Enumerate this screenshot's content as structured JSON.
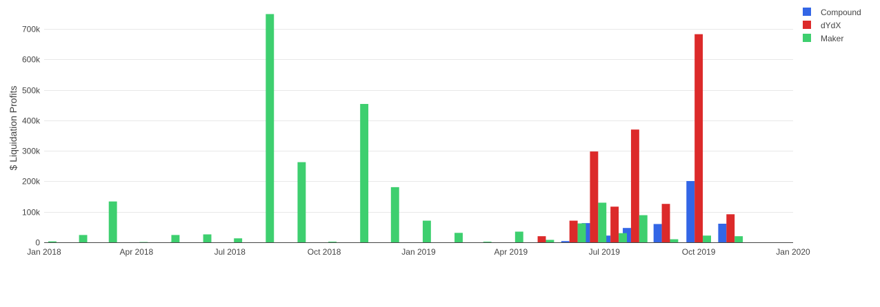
{
  "chart_data": {
    "type": "bar",
    "title": "",
    "xlabel": "",
    "ylabel": "$ Liquidation Profits",
    "x_axis": {
      "type": "date",
      "range": [
        "2018-01-01",
        "2020-01-01"
      ],
      "ticks": [
        {
          "date": "2018-01-01",
          "label": "Jan 2018"
        },
        {
          "date": "2018-04-01",
          "label": "Apr 2018"
        },
        {
          "date": "2018-07-01",
          "label": "Jul 2018"
        },
        {
          "date": "2018-10-01",
          "label": "Oct 2018"
        },
        {
          "date": "2019-01-01",
          "label": "Jan 2019"
        },
        {
          "date": "2019-04-01",
          "label": "Apr 2019"
        },
        {
          "date": "2019-07-01",
          "label": "Jul 2019"
        },
        {
          "date": "2019-10-01",
          "label": "Oct 2019"
        },
        {
          "date": "2020-01-01",
          "label": "Jan 2020"
        }
      ]
    },
    "y_axis": {
      "range": [
        0,
        750000
      ],
      "ticks": [
        {
          "value": 0,
          "label": "0"
        },
        {
          "value": 100000,
          "label": "100k"
        },
        {
          "value": 200000,
          "label": "200k"
        },
        {
          "value": 300000,
          "label": "300k"
        },
        {
          "value": 400000,
          "label": "400k"
        },
        {
          "value": 500000,
          "label": "500k"
        },
        {
          "value": 600000,
          "label": "600k"
        },
        {
          "value": 700000,
          "label": "700k"
        }
      ]
    },
    "grid": {
      "horizontal": true,
      "vertical": false
    },
    "legend": {
      "placement": "top-right"
    },
    "bar_mode": "grouped",
    "series": [
      {
        "name": "Compound",
        "color": "#3366e6",
        "points": [
          {
            "x": "2019-06-01",
            "y": 4000
          },
          {
            "x": "2019-06-21",
            "y": 63000
          },
          {
            "x": "2019-07-11",
            "y": 22000
          },
          {
            "x": "2019-07-31",
            "y": 47000
          },
          {
            "x": "2019-08-30",
            "y": 60000
          },
          {
            "x": "2019-10-01",
            "y": 201000
          },
          {
            "x": "2019-11-01",
            "y": 61000
          }
        ]
      },
      {
        "name": "dYdX",
        "color": "#dc2a2a",
        "points": [
          {
            "x": "2019-05-01",
            "y": 20000
          },
          {
            "x": "2019-06-01",
            "y": 71000
          },
          {
            "x": "2019-06-21",
            "y": 298000
          },
          {
            "x": "2019-07-11",
            "y": 117000
          },
          {
            "x": "2019-07-31",
            "y": 370000
          },
          {
            "x": "2019-08-30",
            "y": 126000
          },
          {
            "x": "2019-10-01",
            "y": 683000
          },
          {
            "x": "2019-11-01",
            "y": 92000
          }
        ]
      },
      {
        "name": "Maker",
        "color": "#3ecf6f",
        "points": [
          {
            "x": "2018-01-01",
            "y": 3000
          },
          {
            "x": "2018-01-31",
            "y": 24000
          },
          {
            "x": "2018-03-01",
            "y": 134000
          },
          {
            "x": "2018-03-31",
            "y": 1000
          },
          {
            "x": "2018-04-30",
            "y": 1000
          },
          {
            "x": "2018-05-01",
            "y": 24000
          },
          {
            "x": "2018-06-01",
            "y": 26000
          },
          {
            "x": "2018-07-01",
            "y": 13000
          },
          {
            "x": "2018-08-01",
            "y": 749000
          },
          {
            "x": "2018-09-01",
            "y": 263000
          },
          {
            "x": "2018-10-01",
            "y": 2000
          },
          {
            "x": "2018-11-01",
            "y": 454000
          },
          {
            "x": "2018-12-01",
            "y": 181000
          },
          {
            "x": "2019-01-01",
            "y": 71000
          },
          {
            "x": "2019-02-01",
            "y": 31000
          },
          {
            "x": "2019-03-01",
            "y": 2000
          },
          {
            "x": "2019-04-01",
            "y": 35000
          },
          {
            "x": "2019-05-01",
            "y": 8000
          },
          {
            "x": "2019-06-01",
            "y": 62000
          },
          {
            "x": "2019-06-21",
            "y": 130000
          },
          {
            "x": "2019-07-11",
            "y": 30000
          },
          {
            "x": "2019-07-31",
            "y": 89000
          },
          {
            "x": "2019-08-30",
            "y": 10000
          },
          {
            "x": "2019-10-01",
            "y": 22000
          },
          {
            "x": "2019-11-01",
            "y": 20000
          }
        ]
      }
    ]
  }
}
